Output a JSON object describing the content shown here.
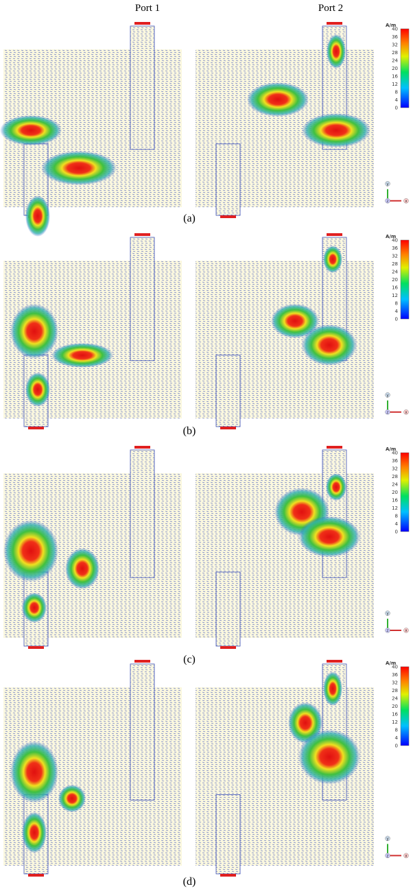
{
  "header": {
    "columns": [
      "Port 1",
      "Port 2"
    ]
  },
  "panels": [
    {
      "label": "(a)"
    },
    {
      "label": "(b)"
    },
    {
      "label": "(c)"
    },
    {
      "label": "(d)"
    }
  ],
  "colorbar": {
    "unit": "A/m",
    "ticks": [
      40,
      36,
      32,
      28,
      24,
      20,
      16,
      12,
      8,
      4,
      0
    ]
  },
  "axes": {
    "y": "y",
    "x": "x",
    "z": "z"
  }
}
